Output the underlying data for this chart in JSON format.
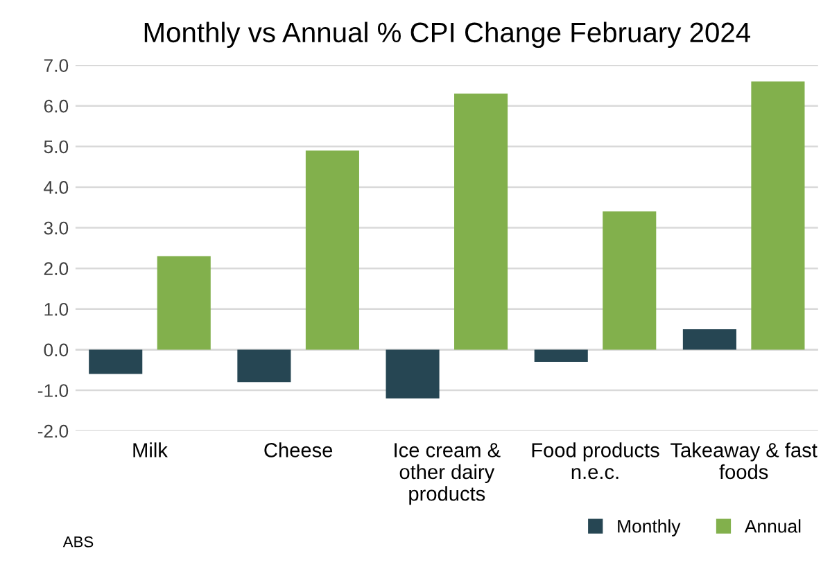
{
  "chart_data": {
    "type": "bar",
    "title": "Monthly vs Annual % CPI Change February 2024",
    "categories": [
      "Milk",
      "Cheese",
      "Ice cream &\nother dairy\nproducts",
      "Food products\nn.e.c.",
      "Takeaway & fast\nfoods"
    ],
    "series": [
      {
        "name": "Monthly",
        "color": "#264653",
        "values": [
          -0.6,
          -0.8,
          -1.2,
          -0.3,
          0.5
        ]
      },
      {
        "name": "Annual",
        "color": "#82b04c",
        "values": [
          2.3,
          4.9,
          6.3,
          3.4,
          6.6
        ]
      }
    ],
    "ylim": [
      -2,
      7
    ],
    "yticks": [
      {
        "value": -2,
        "label": "-2.0"
      },
      {
        "value": -1,
        "label": "-1.0"
      },
      {
        "value": 0,
        "label": "0.0"
      },
      {
        "value": 1,
        "label": "1.0"
      },
      {
        "value": 2,
        "label": "2.0"
      },
      {
        "value": 3,
        "label": "3.0"
      },
      {
        "value": 4,
        "label": "4.0"
      },
      {
        "value": 5,
        "label": "5.0"
      },
      {
        "value": 6,
        "label": "6.0"
      },
      {
        "value": 7,
        "label": "7.0"
      }
    ],
    "grid": "y",
    "legend": "bottom right",
    "annotations": [
      "ABS"
    ]
  }
}
